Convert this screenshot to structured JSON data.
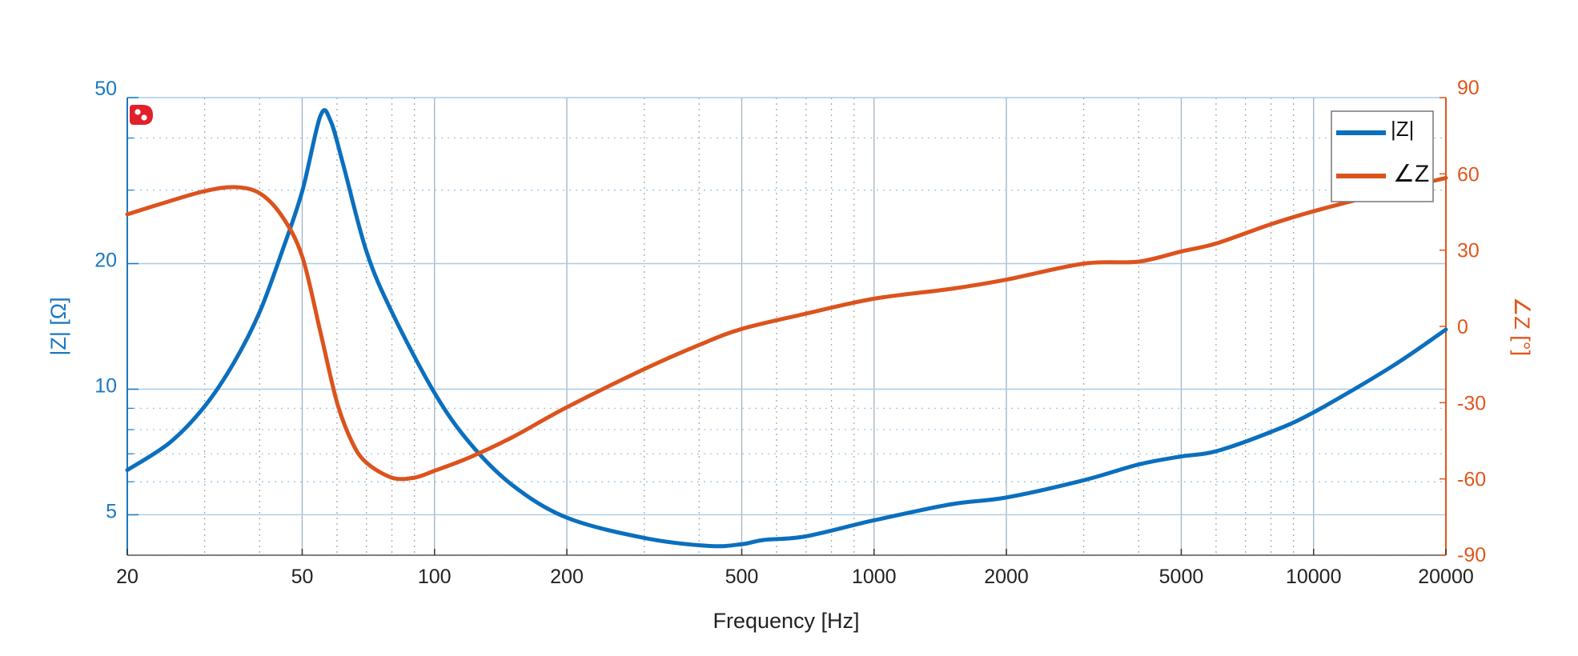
{
  "chart_data": {
    "type": "line",
    "xlabel": "Frequency [Hz]",
    "ylabel_left": "|Z| [Ω]",
    "ylabel_right": "∠Z [°]",
    "x_scale": "log",
    "xlim": [
      20,
      20000
    ],
    "x_ticks": [
      20,
      50,
      100,
      200,
      500,
      1000,
      2000,
      5000,
      10000,
      20000
    ],
    "y_left_scale": "log",
    "y_left_lim": [
      4,
      50
    ],
    "y_left_ticks": [
      5,
      10,
      20,
      50
    ],
    "y_right_lim": [
      -90,
      90
    ],
    "y_right_ticks": [
      -90,
      -60,
      -30,
      0,
      30,
      60,
      90
    ],
    "grid": true,
    "legend_position": "top-right",
    "series": [
      {
        "name": "|Z|",
        "axis": "left",
        "color": "#0b6fbe",
        "x": [
          20,
          25,
          30,
          35,
          40,
          45,
          50,
          55,
          58,
          62,
          70,
          80,
          100,
          120,
          150,
          200,
          300,
          420,
          500,
          560,
          700,
          1000,
          1500,
          2000,
          3000,
          4000,
          5000,
          6000,
          8000,
          10000,
          15000,
          20000
        ],
        "y": [
          6.4,
          7.45,
          9.1,
          11.6,
          15.3,
          21.4,
          29.8,
          45.2,
          44,
          34.5,
          21.4,
          15.3,
          9.8,
          7.45,
          5.9,
          4.92,
          4.4,
          4.21,
          4.25,
          4.35,
          4.44,
          4.85,
          5.3,
          5.5,
          6.05,
          6.6,
          6.9,
          7.1,
          7.9,
          8.8,
          11.3,
          13.9
        ]
      },
      {
        "name": "∠Z",
        "axis": "right",
        "color": "#dc531d",
        "x": [
          20,
          25,
          30,
          35,
          40,
          45,
          50,
          55,
          60,
          65,
          70,
          80,
          90,
          100,
          120,
          150,
          200,
          300,
          400,
          500,
          700,
          1000,
          1500,
          2000,
          3000,
          4000,
          5000,
          6000,
          8000,
          10000,
          15000,
          20000
        ],
        "y": [
          44.1,
          49.3,
          53.2,
          54.8,
          52.4,
          43.3,
          27.5,
          -2.2,
          -29.9,
          -45.7,
          -53.6,
          -59.5,
          -59.5,
          -56.8,
          -51.6,
          -43.7,
          -31.8,
          -16.8,
          -7.3,
          -1,
          5,
          10.9,
          14.8,
          18.4,
          24.7,
          25.5,
          29.5,
          32.6,
          40.2,
          45.3,
          53.2,
          58.4
        ]
      }
    ]
  },
  "colors": {
    "left_axis": "#1a78c2",
    "right_axis": "#e0561c",
    "grid_major": "#a9cbe6",
    "logo": "#e0202a"
  },
  "logo_icon": "red-dots-logo-icon"
}
